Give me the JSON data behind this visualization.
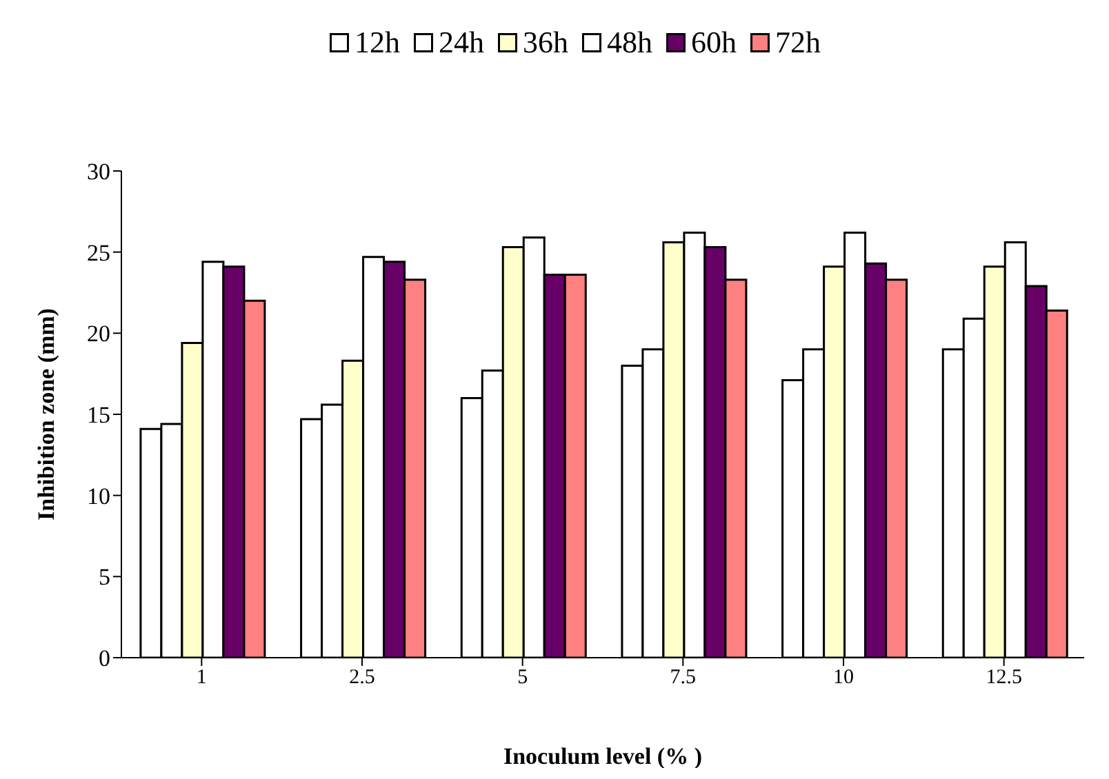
{
  "chart_data": {
    "type": "bar",
    "xlabel": "Inoculum level (% )",
    "ylabel": "Inhibition zone (mm)",
    "categories": [
      "1",
      "2.5",
      "5",
      "7.5",
      "10",
      "12.5"
    ],
    "series": [
      {
        "name": "12h",
        "color": "#ffffff",
        "values": [
          14.1,
          14.7,
          16.0,
          18.0,
          17.1,
          19.0
        ]
      },
      {
        "name": "24h",
        "color": "#ffffff",
        "values": [
          14.4,
          15.6,
          17.7,
          19.0,
          19.0,
          20.9
        ]
      },
      {
        "name": "36h",
        "color": "#ffffcc",
        "values": [
          19.4,
          18.3,
          25.3,
          25.6,
          24.1,
          24.1
        ]
      },
      {
        "name": "48h",
        "color": "#ffffff",
        "values": [
          24.4,
          24.7,
          25.9,
          26.2,
          26.2,
          25.6
        ]
      },
      {
        "name": "60h",
        "color": "#660066",
        "values": [
          24.1,
          24.4,
          23.6,
          25.3,
          24.3,
          22.9
        ]
      },
      {
        "name": "72h",
        "color": "#ff8080",
        "values": [
          22.0,
          23.3,
          23.6,
          23.3,
          23.3,
          21.4
        ]
      }
    ],
    "ylim": [
      0,
      30
    ],
    "yticks": [
      0,
      5,
      10,
      15,
      20,
      25,
      30
    ],
    "grid": false,
    "legend": "top"
  }
}
